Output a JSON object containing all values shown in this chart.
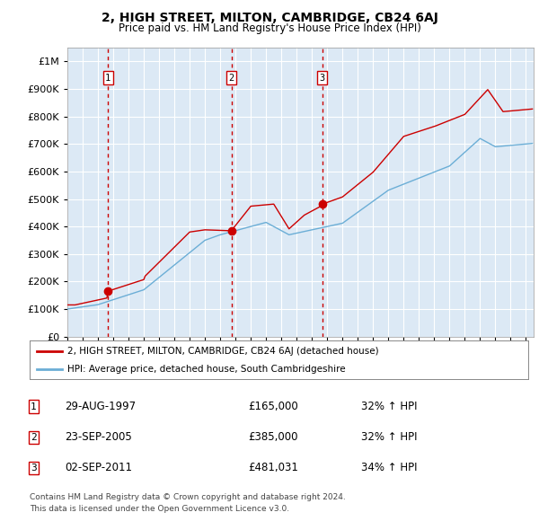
{
  "title": "2, HIGH STREET, MILTON, CAMBRIDGE, CB24 6AJ",
  "subtitle": "Price paid vs. HM Land Registry's House Price Index (HPI)",
  "legend_line1": "2, HIGH STREET, MILTON, CAMBRIDGE, CB24 6AJ (detached house)",
  "legend_line2": "HPI: Average price, detached house, South Cambridgeshire",
  "footnote1": "Contains HM Land Registry data © Crown copyright and database right 2024.",
  "footnote2": "This data is licensed under the Open Government Licence v3.0.",
  "sales": [
    {
      "num": 1,
      "date": "29-AUG-1997",
      "price": 165000,
      "pct": "32%",
      "dir": "↑",
      "x_year": 1997.66
    },
    {
      "num": 2,
      "date": "23-SEP-2005",
      "price": 385000,
      "pct": "32%",
      "dir": "↑",
      "x_year": 2005.73
    },
    {
      "num": 3,
      "date": "02-SEP-2011",
      "price": 481031,
      "pct": "34%",
      "dir": "↑",
      "x_year": 2011.67
    }
  ],
  "hpi_color": "#6baed6",
  "price_color": "#cc0000",
  "plot_bg": "#dce9f5",
  "ylim": [
    0,
    1050000
  ],
  "yticks": [
    0,
    100000,
    200000,
    300000,
    400000,
    500000,
    600000,
    700000,
    800000,
    900000,
    1000000
  ],
  "xlim_start": 1995.0,
  "xlim_end": 2025.5,
  "grid_color": "#ffffff",
  "dashed_line_color": "#cc0000"
}
